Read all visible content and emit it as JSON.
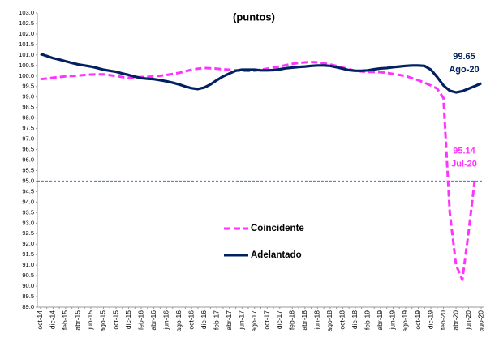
{
  "chart_data": {
    "type": "line",
    "title": "(puntos)",
    "categories": [
      "oct-14",
      null,
      "dic-14",
      null,
      "feb-15",
      null,
      "abr-15",
      null,
      "jun-15",
      null,
      "ago-15",
      null,
      "oct-15",
      null,
      "dic-15",
      null,
      "feb-16",
      null,
      "abr-16",
      null,
      "jun-16",
      null,
      "ago-16",
      null,
      "oct-16",
      null,
      "dic-16",
      null,
      "feb-17",
      null,
      "abr-17",
      null,
      "jun-17",
      null,
      "ago-17",
      null,
      "oct-17",
      null,
      "dic-17",
      null,
      "feb-18",
      null,
      "abr-18",
      null,
      "jun-18",
      null,
      "ago-18",
      null,
      "oct-18",
      null,
      "dic-18",
      null,
      "feb-19",
      null,
      "abr-19",
      null,
      "jun-19",
      null,
      "ago-19",
      null,
      "oct-19",
      null,
      "dic-19",
      null,
      "feb-20",
      null,
      "abr-20",
      null,
      "jun-20",
      null,
      "ago-20"
    ],
    "series": [
      {
        "name": "Coincidente",
        "color": "#ff33ff",
        "dashed": true,
        "label": [
          "95.14",
          "Jul-20"
        ],
        "values": [
          99.85,
          99.88,
          99.92,
          99.95,
          99.98,
          100.0,
          100.02,
          100.05,
          100.07,
          100.08,
          100.08,
          100.04,
          100.0,
          99.95,
          99.92,
          99.93,
          99.95,
          99.96,
          99.98,
          100.01,
          100.05,
          100.1,
          100.15,
          100.22,
          100.3,
          100.35,
          100.38,
          100.37,
          100.35,
          100.32,
          100.3,
          100.27,
          100.25,
          100.24,
          100.25,
          100.3,
          100.35,
          100.4,
          100.45,
          100.52,
          100.58,
          100.62,
          100.65,
          100.66,
          100.65,
          100.6,
          100.55,
          100.48,
          100.4,
          100.32,
          100.25,
          100.22,
          100.2,
          100.19,
          100.18,
          100.15,
          100.1,
          100.05,
          100.0,
          99.9,
          99.8,
          99.68,
          99.55,
          99.4,
          98.95,
          93.5,
          91.0,
          90.3,
          92.6,
          95.14,
          null
        ]
      },
      {
        "name": "Adelantado",
        "color": "#002060",
        "dashed": false,
        "label": [
          "99.65",
          "Ago-20"
        ],
        "values": [
          101.05,
          100.95,
          100.85,
          100.78,
          100.7,
          100.62,
          100.55,
          100.5,
          100.45,
          100.38,
          100.3,
          100.25,
          100.2,
          100.12,
          100.05,
          99.97,
          99.9,
          99.87,
          99.85,
          99.8,
          99.75,
          99.68,
          99.6,
          99.5,
          99.42,
          99.38,
          99.45,
          99.6,
          99.8,
          99.98,
          100.12,
          100.25,
          100.3,
          100.3,
          100.3,
          100.27,
          100.27,
          100.28,
          100.32,
          100.37,
          100.4,
          100.43,
          100.45,
          100.48,
          100.5,
          100.5,
          100.48,
          100.42,
          100.35,
          100.28,
          100.25,
          100.25,
          100.27,
          100.32,
          100.36,
          100.38,
          100.42,
          100.45,
          100.48,
          100.5,
          100.5,
          100.48,
          100.3,
          99.95,
          99.55,
          99.3,
          99.22,
          99.28,
          99.4,
          99.52,
          99.65
        ]
      }
    ],
    "ylim": [
      89.0,
      103.0
    ],
    "yticks": [
      {
        "value": 89,
        "label": "89.0"
      },
      89.5,
      {
        "value": 90,
        "label": "90.0"
      },
      90.5,
      {
        "value": 91,
        "label": "91.0"
      },
      91.5,
      {
        "value": 92,
        "label": "92.0"
      },
      92.5,
      {
        "value": 93,
        "label": "93.0"
      },
      93.5,
      {
        "value": 94,
        "label": "94.0"
      },
      94.5,
      {
        "value": 95,
        "label": "95.0"
      },
      95.5,
      {
        "value": 96,
        "label": "96.0"
      },
      96.5,
      {
        "value": 97,
        "label": "97.0"
      },
      97.5,
      {
        "value": 98,
        "label": "98.0"
      },
      98.5,
      {
        "value": 99,
        "label": "99.0"
      },
      99.5,
      {
        "value": 100,
        "label": "100.0"
      },
      100.5,
      {
        "value": 101,
        "label": "101.0"
      },
      101.5,
      {
        "value": 102,
        "label": "102.0"
      },
      102.5,
      {
        "value": 103,
        "label": "103.0"
      }
    ],
    "reference_line": 95,
    "reference_color": "#4472c4",
    "grid": false,
    "legend": "center"
  }
}
